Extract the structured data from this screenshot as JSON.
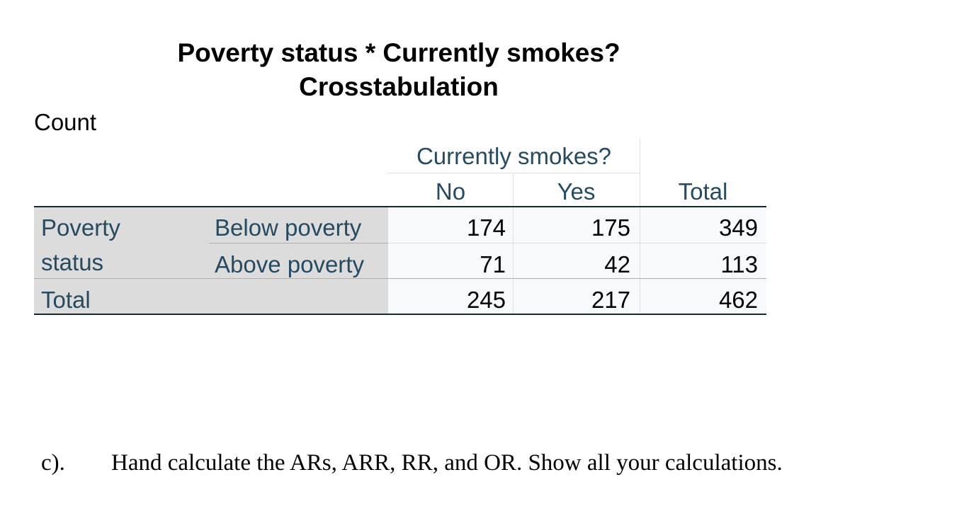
{
  "header": {
    "title": [
      "Poverty status * Currently smokes?",
      "Crosstabulation"
    ],
    "statistic": "Count"
  },
  "table": {
    "column_group": "Currently smokes?",
    "columns": [
      "No",
      "Yes",
      "Total"
    ],
    "row_group": [
      "Poverty",
      "status"
    ],
    "rows": [
      {
        "label": "Below poverty",
        "values": [
          174,
          175,
          349
        ]
      },
      {
        "label": "Above poverty",
        "values": [
          71,
          42,
          113
        ]
      }
    ],
    "total": {
      "label": "Total",
      "values": [
        245,
        217,
        462
      ]
    }
  },
  "question": {
    "label": "c).",
    "text": "Hand calculate the ARs, ARR, RR, and OR. Show all your calculations."
  }
}
